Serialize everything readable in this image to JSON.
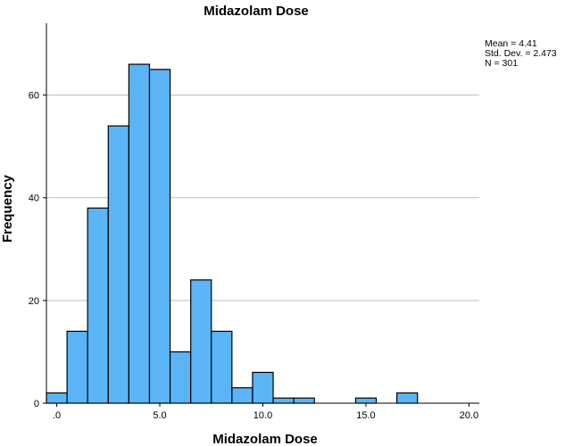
{
  "chart_data": {
    "type": "bar",
    "title": "Midazolam Dose",
    "xlabel": "Midazolam Dose",
    "ylabel": "Frequency",
    "bin_width": 1.0,
    "bin_start": -0.5,
    "values": [
      2,
      14,
      38,
      54,
      66,
      65,
      10,
      24,
      14,
      3,
      6,
      1,
      1,
      0,
      0,
      1,
      0,
      2,
      0,
      0,
      0
    ],
    "xlim": [
      -0.5,
      20.5
    ],
    "ylim": [
      0,
      74
    ],
    "x_ticks": [
      0,
      5,
      10,
      15,
      20
    ],
    "x_tick_labels": [
      ".0",
      "5.0",
      "10.0",
      "15.0",
      "20.0"
    ],
    "y_ticks": [
      0,
      20,
      40,
      60
    ],
    "y_tick_labels": [
      "0",
      "20",
      "40",
      "60"
    ],
    "grid": true,
    "stats": [
      "Mean = 4.41",
      "Std. Dev. = 2.473",
      "N = 301"
    ],
    "colors": {
      "bar_fill": "#5ab4f5",
      "bar_stroke": "#000000",
      "grid": "#bdbdbd"
    }
  }
}
